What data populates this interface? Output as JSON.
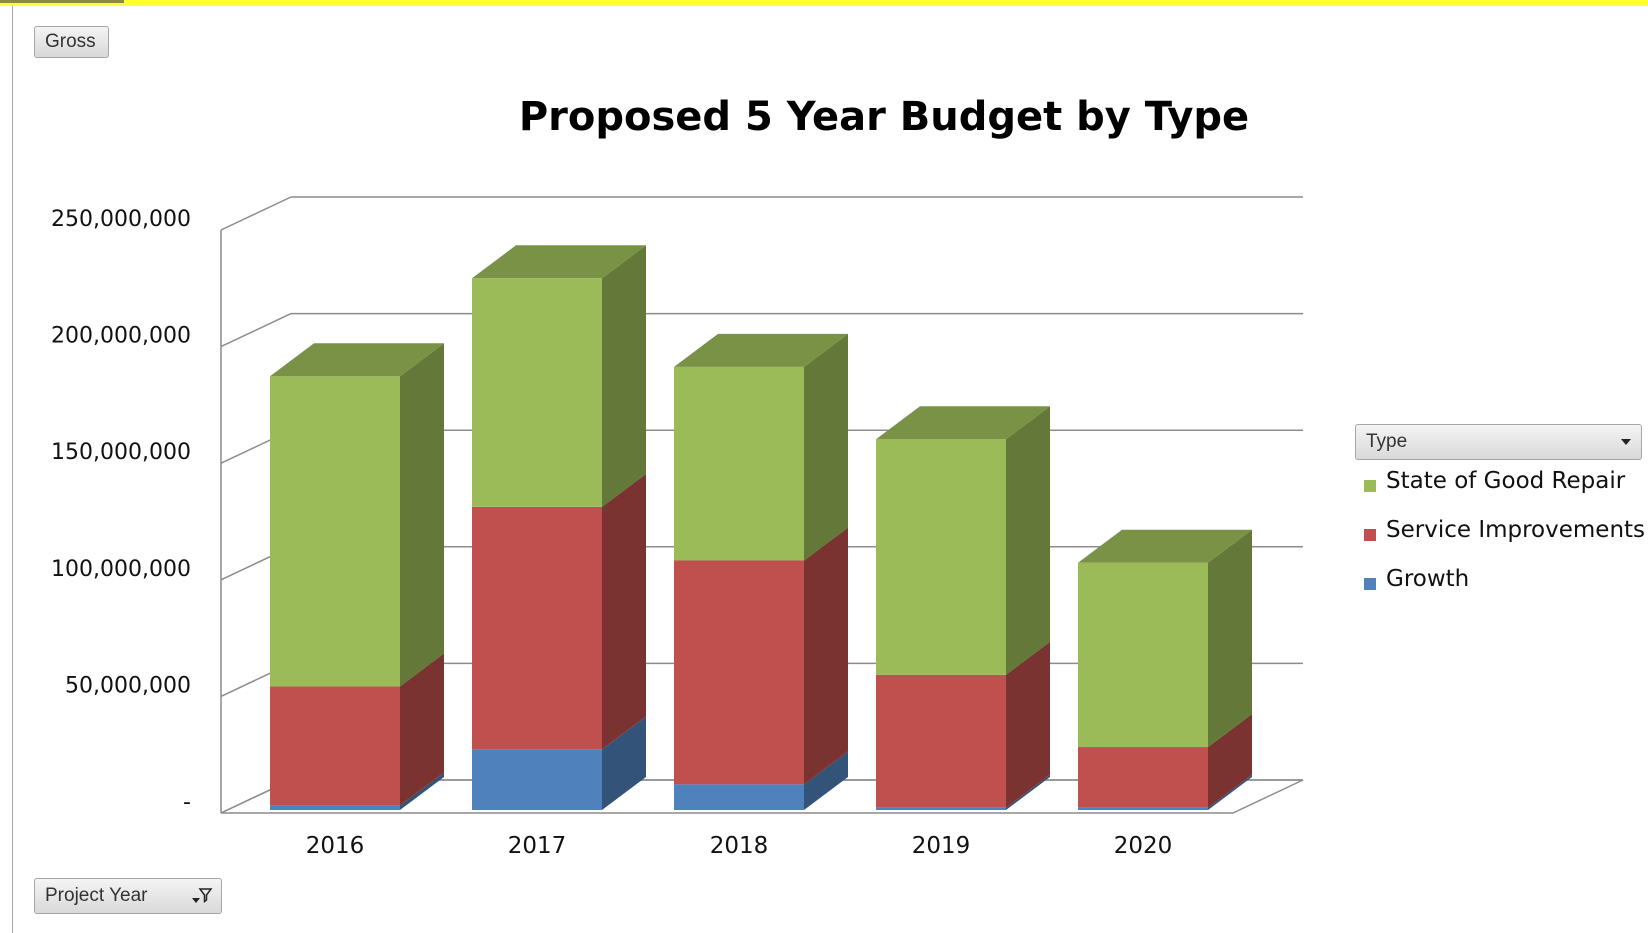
{
  "buttons": {
    "gross_label": "Gross",
    "year_label": "Project Year",
    "type_label": "Type"
  },
  "chart_data": {
    "type": "bar",
    "stacked": true,
    "style_3d": true,
    "title": "Proposed 5 Year Budget by Type",
    "categories": [
      "2016",
      "2017",
      "2018",
      "2019",
      "2020"
    ],
    "series": [
      {
        "name": "Growth",
        "color": "#4f81bd",
        "values": [
          2000000,
          26000000,
          11000000,
          1000000,
          1000000
        ]
      },
      {
        "name": "Service Improvements",
        "color": "#c0504d",
        "values": [
          51000000,
          104000000,
          96000000,
          57000000,
          26000000
        ]
      },
      {
        "name": "State of Good Repair",
        "color": "#9bbb59",
        "values": [
          133000000,
          98000000,
          83000000,
          101000000,
          79000000
        ]
      }
    ],
    "ylim": [
      0,
      250000000
    ],
    "yticks": [
      0,
      50000000,
      100000000,
      150000000,
      200000000,
      250000000
    ],
    "ytick_labels": [
      "-",
      "50,000,000",
      "100,000,000",
      "150,000,000",
      "200,000,000",
      "250,000,000"
    ],
    "grid": true,
    "legend_position": "right",
    "legend_order": [
      "State of Good Repair",
      "Service Improvements",
      "Growth"
    ]
  }
}
